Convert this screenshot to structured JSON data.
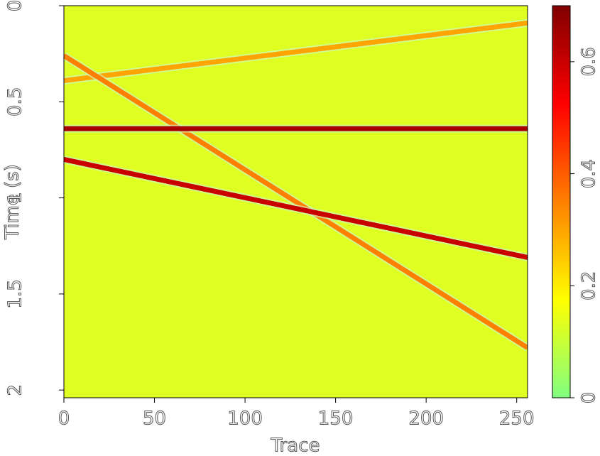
{
  "chart_data": {
    "type": "heatmap",
    "xlabel": "Trace",
    "ylabel": "Time (s)",
    "xlim": [
      0,
      256
    ],
    "ylim": [
      0,
      2.04
    ],
    "y_inverted": true,
    "xticks": [
      0,
      50,
      100,
      150,
      200,
      250
    ],
    "yticks": [
      0,
      0.5,
      1,
      1.5,
      2
    ],
    "zlim": [
      0,
      0.7
    ],
    "zticks": [
      0,
      0.2,
      0.4,
      0.6
    ],
    "colormap": [
      "#80ff80",
      "#ffff00",
      "#ff8000",
      "#ff0000",
      "#800000"
    ],
    "background_value": 0.13,
    "series": [
      {
        "x": [
          0,
          256
        ],
        "y": [
          0.39,
          0.09
        ],
        "value": 0.3
      },
      {
        "x": [
          0,
          256
        ],
        "y": [
          0.26,
          1.78
        ],
        "value": 0.35
      },
      {
        "x": [
          0,
          256
        ],
        "y": [
          0.64,
          0.64
        ],
        "value": 0.65
      },
      {
        "x": [
          0,
          256
        ],
        "y": [
          0.8,
          1.31
        ],
        "value": 0.6
      }
    ]
  }
}
